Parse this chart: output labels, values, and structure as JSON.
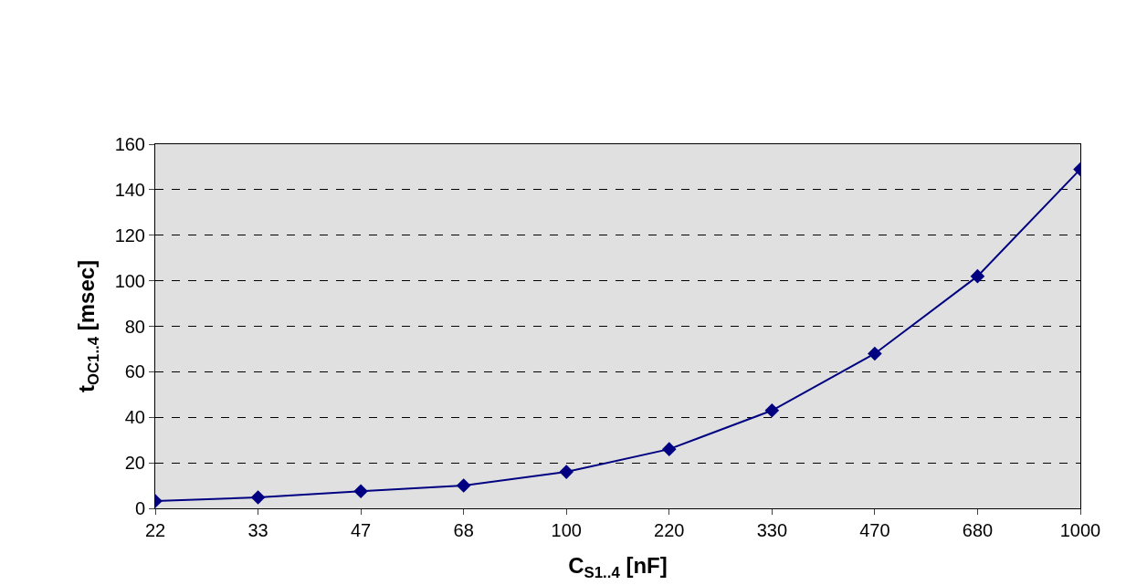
{
  "chart_data": {
    "type": "line",
    "xlabel": "C$_{S1..4}$ [nF]",
    "ylabel": "t$_{OC1..4}$ [msec]",
    "categories": [
      "22",
      "33",
      "47",
      "68",
      "100",
      "220",
      "330",
      "470",
      "680",
      "1000"
    ],
    "series": [
      {
        "color": "#000080",
        "values": [
          3.2,
          4.8,
          7.5,
          10,
          16,
          26,
          43,
          68,
          102,
          149
        ]
      }
    ],
    "ylim": [
      0,
      160
    ],
    "yticks": [
      0,
      20,
      40,
      60,
      80,
      100,
      120,
      140,
      160
    ],
    "grid": "y",
    "marker": "diamond",
    "line_style": "solid",
    "legend": false
  }
}
